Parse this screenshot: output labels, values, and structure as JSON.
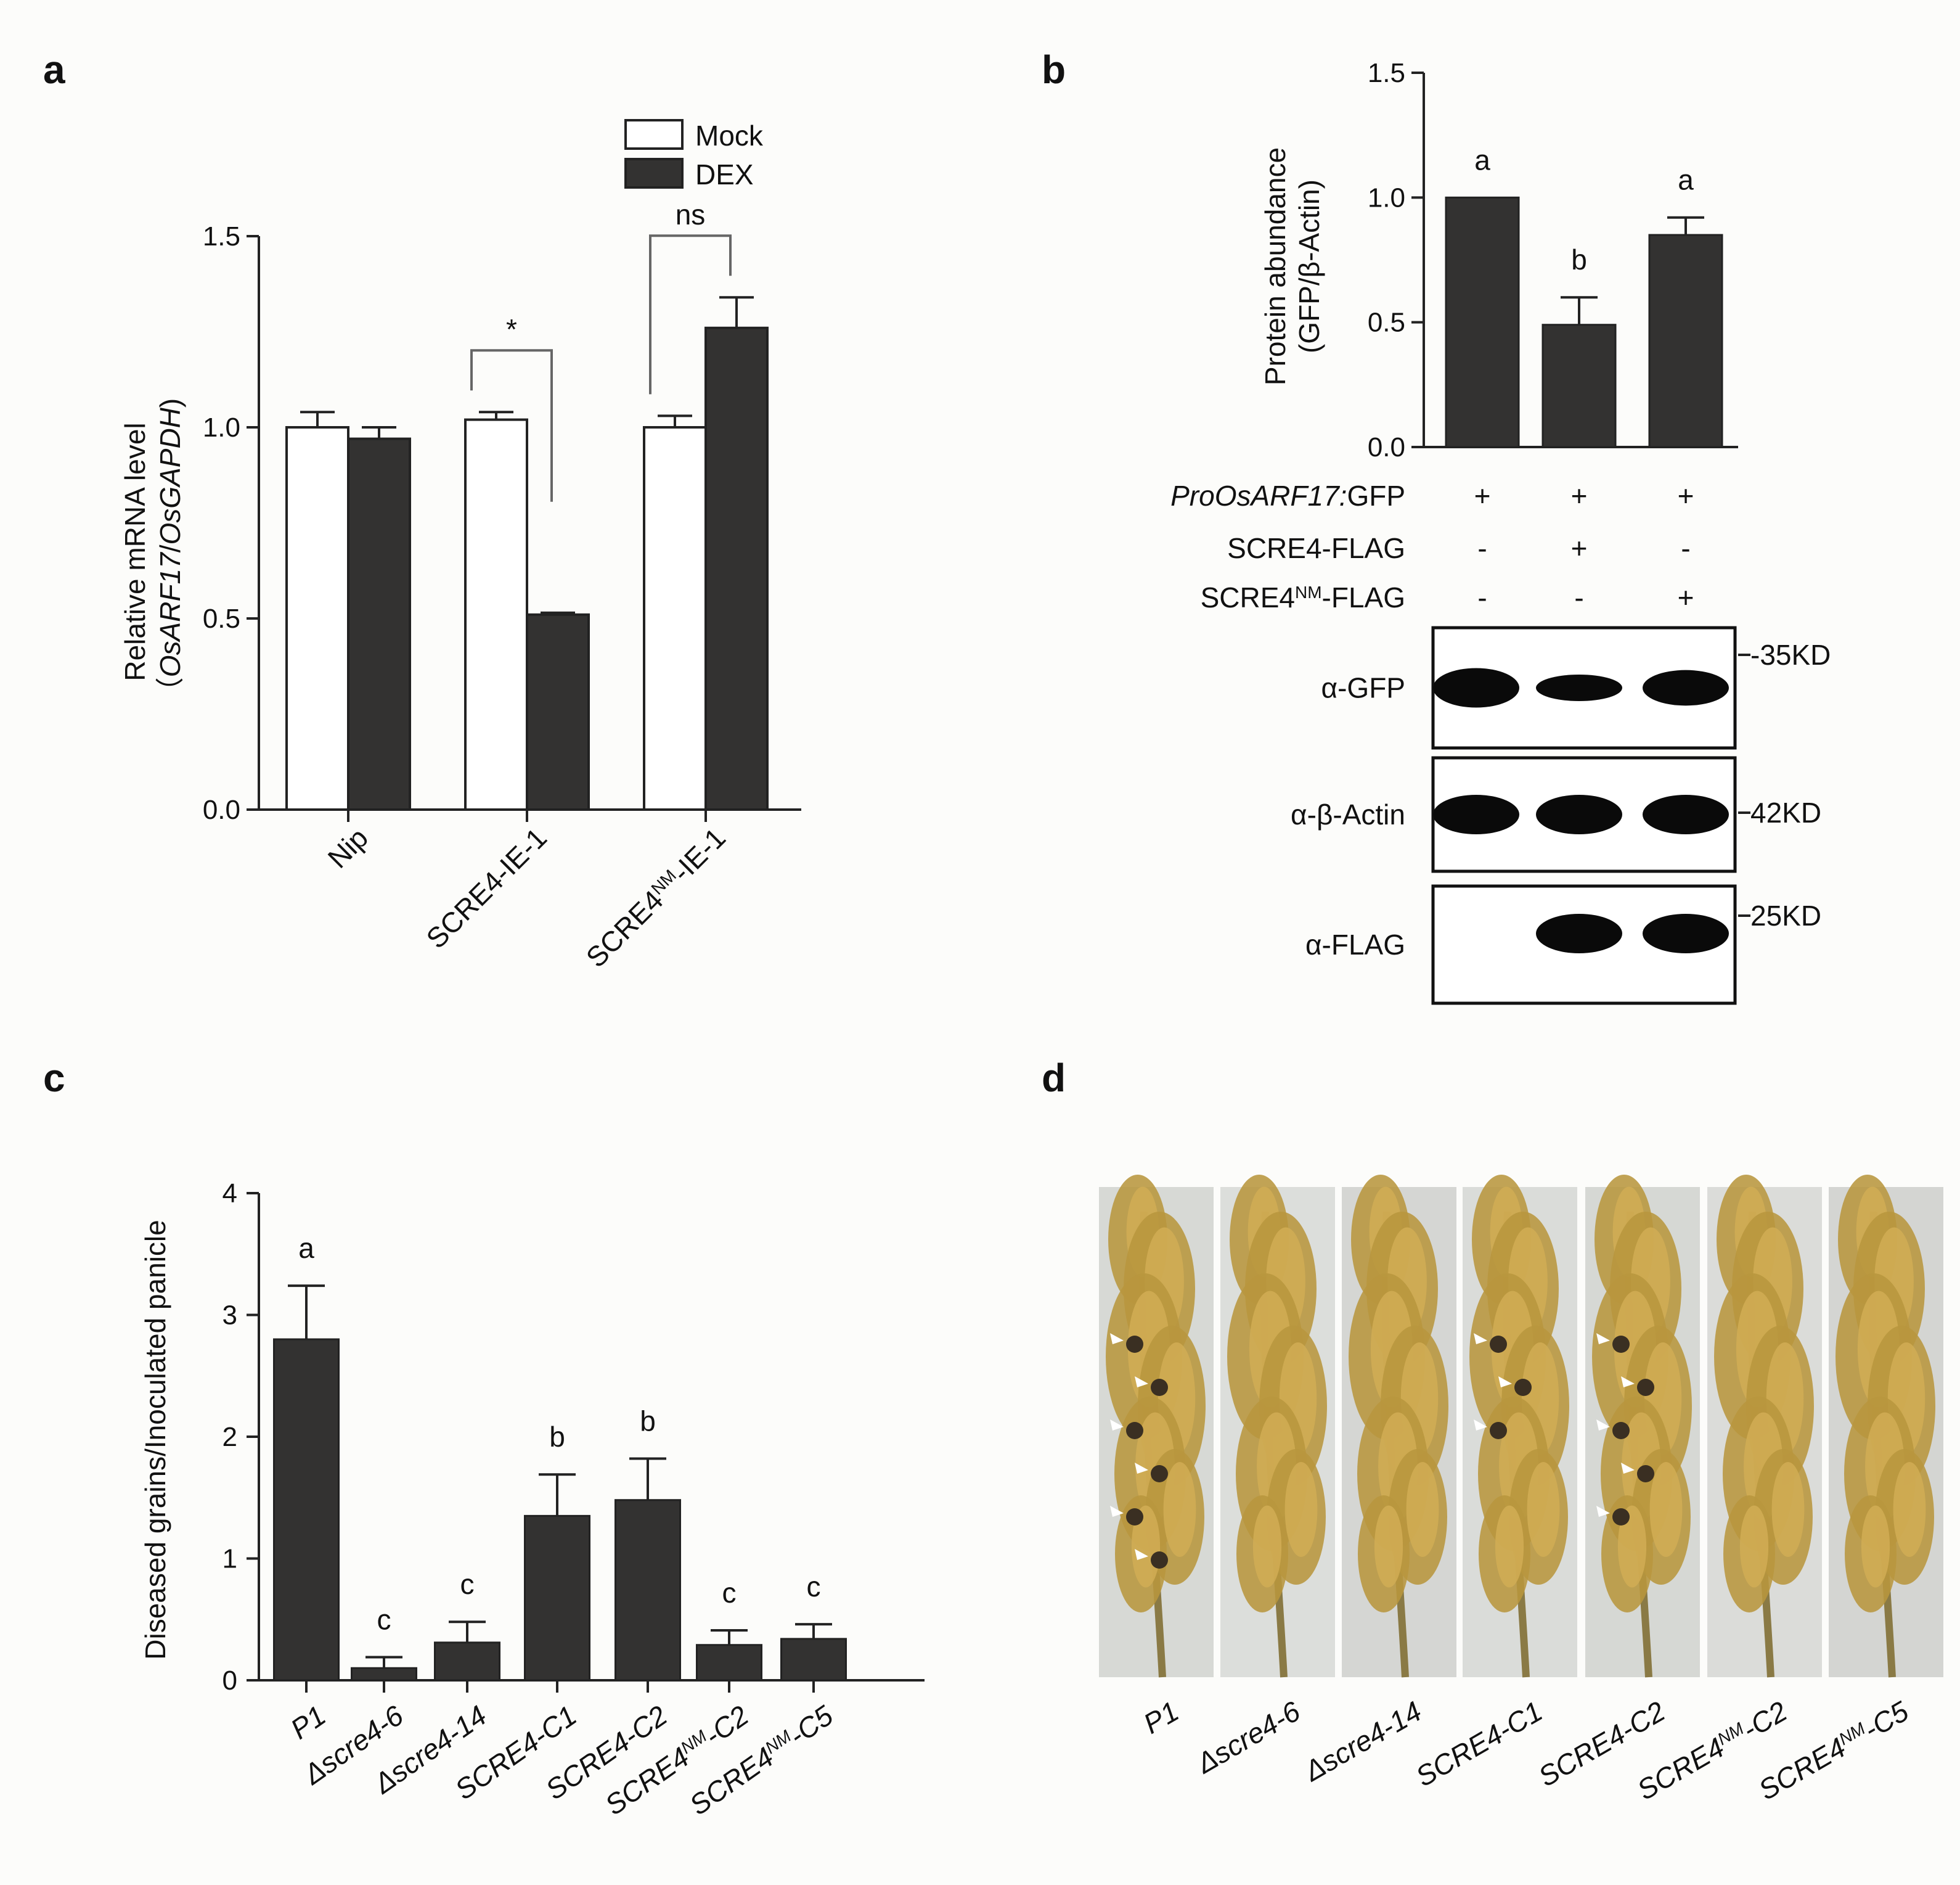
{
  "panels": {
    "a": "a",
    "b": "b",
    "c": "c",
    "d": "d"
  },
  "colors": {
    "dark_bar": "#333231",
    "white_bar": "#ffffff",
    "axis": "#222222",
    "bracket": "#666666"
  },
  "chart_data": [
    {
      "panel": "a",
      "type": "bar",
      "categories": [
        "Nip",
        "SCRE4-IE-1",
        "SCRE4NM-IE-1"
      ],
      "category_labels": [
        {
          "main": "Nip",
          "sup": "",
          "rest": ""
        },
        {
          "main": "SCRE4-IE-1",
          "sup": "",
          "rest": ""
        },
        {
          "main": "SCRE4",
          "sup": "NM",
          "rest": "-IE-1"
        }
      ],
      "series": [
        {
          "name": "Mock",
          "color": "#ffffff",
          "values": [
            1.0,
            1.02,
            1.0
          ],
          "errors": [
            0.04,
            0.02,
            0.03
          ]
        },
        {
          "name": "DEX",
          "color": "#333231",
          "values": [
            0.97,
            0.51,
            1.26
          ],
          "errors": [
            0.03,
            0.005,
            0.08
          ]
        }
      ],
      "ylabel_line1": "Relative mRNA level",
      "ylabel_line2": {
        "open": "（",
        "a": "OsARF17",
        "sep": "/",
        "b": "OsGAPDH",
        "close": ")"
      },
      "ylim": [
        0,
        1.5
      ],
      "yticks": [
        "0.0",
        "0.5",
        "1.0",
        "1.5"
      ],
      "significance": [
        {
          "group": 1,
          "label": "*"
        },
        {
          "group": 2,
          "label": "ns"
        }
      ],
      "legend": {
        "position": "top-right",
        "items": [
          "Mock",
          "DEX"
        ]
      }
    },
    {
      "panel": "b",
      "type": "bar",
      "categories": [
        "1",
        "2",
        "3"
      ],
      "values": [
        1.0,
        0.49,
        0.85
      ],
      "errors": [
        0.0,
        0.11,
        0.07
      ],
      "letters": [
        "a",
        "b",
        "a"
      ],
      "ylabel_line1": "Protein abundance",
      "ylabel_line2": "(GFP/β-Actin)",
      "ylim": [
        0,
        1.5
      ],
      "yticks": [
        "0.0",
        "0.5",
        "1.0",
        "1.5"
      ],
      "treatment_rows": [
        {
          "italic": "ProOsARF17:",
          "normal": "GFP",
          "sup": "",
          "tail": "",
          "signs": [
            "+",
            "+",
            "+"
          ]
        },
        {
          "italic": "",
          "normal": "SCRE4-FLAG",
          "sup": "",
          "tail": "",
          "signs": [
            "-",
            "+",
            "-"
          ]
        },
        {
          "italic": "",
          "normal": "SCRE4",
          "sup": "NM",
          "tail": "-FLAG",
          "signs": [
            "-",
            "-",
            "+"
          ]
        }
      ],
      "blots": [
        {
          "label": "α-GFP",
          "marker": "-35KD",
          "band_strength": [
            1.0,
            0.5,
            0.85
          ]
        },
        {
          "label": "α-β-Actin",
          "marker": "42KD",
          "band_strength": [
            1.0,
            1.0,
            1.0
          ]
        },
        {
          "label": "α-FLAG",
          "marker": "25KD",
          "band_strength": [
            0.0,
            1.0,
            1.0
          ]
        }
      ]
    },
    {
      "panel": "c",
      "type": "bar",
      "categories": [
        "P1",
        "Δscre4-6",
        "Δscre4-14",
        "SCRE4-C1",
        "SCRE4-C2",
        "SCRE4NM-C2",
        "SCRE4NM-C5"
      ],
      "category_labels": [
        {
          "main": "P1",
          "sup": "",
          "rest": ""
        },
        {
          "main": "Δscre4-6",
          "sup": "",
          "rest": ""
        },
        {
          "main": "Δscre4-14",
          "sup": "",
          "rest": ""
        },
        {
          "main": "SCRE4-C1",
          "sup": "",
          "rest": ""
        },
        {
          "main": "SCRE4-C2",
          "sup": "",
          "rest": ""
        },
        {
          "main": "SCRE4",
          "sup": "NM",
          "rest": "-C2"
        },
        {
          "main": "SCRE4",
          "sup": "NM",
          "rest": "-C5"
        }
      ],
      "values": [
        2.8,
        0.1,
        0.31,
        1.35,
        1.48,
        0.29,
        0.34
      ],
      "errors": [
        0.44,
        0.09,
        0.17,
        0.34,
        0.34,
        0.12,
        0.12
      ],
      "letters": [
        "a",
        "c",
        "c",
        "b",
        "b",
        "c",
        "c"
      ],
      "ylabel": "Diseased grains/Inoculated panicle",
      "ylim": [
        0,
        4
      ],
      "yticks": [
        "0",
        "1",
        "2",
        "3",
        "4"
      ]
    }
  ],
  "panel_d": {
    "labels": [
      {
        "main": "P1",
        "sup": "",
        "rest": ""
      },
      {
        "main": "Δscre4-6",
        "sup": "",
        "rest": ""
      },
      {
        "main": "Δscre4-14",
        "sup": "",
        "rest": ""
      },
      {
        "main": "SCRE4-C1",
        "sup": "",
        "rest": ""
      },
      {
        "main": "SCRE4-C2",
        "sup": "",
        "rest": ""
      },
      {
        "main": "SCRE4",
        "sup": "NM",
        "rest": "-C2"
      },
      {
        "main": "SCRE4",
        "sup": "NM",
        "rest": "-C5"
      }
    ],
    "diseased_marks": [
      6,
      0,
      0,
      3,
      5,
      0,
      0
    ]
  }
}
